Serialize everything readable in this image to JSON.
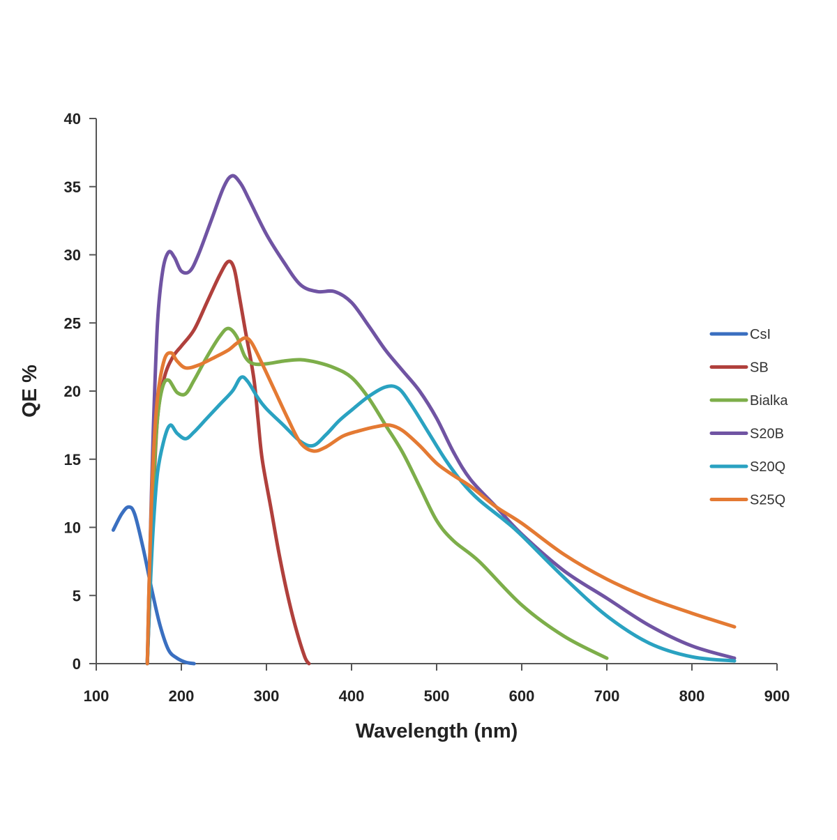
{
  "chart_data": {
    "type": "line",
    "xlabel": "Wavelength (nm)",
    "ylabel": "QE %",
    "xlim": [
      100,
      900
    ],
    "ylim": [
      0,
      40
    ],
    "x_ticks": [
      100,
      200,
      300,
      400,
      500,
      600,
      700,
      800,
      900
    ],
    "y_ticks": [
      0,
      5,
      10,
      15,
      20,
      25,
      30,
      35,
      40
    ],
    "grid": false,
    "legend_position": "right",
    "series": [
      {
        "name": "CsI",
        "color": "#3a6fc0",
        "points": [
          [
            120,
            9.8
          ],
          [
            130,
            11.0
          ],
          [
            138,
            11.5
          ],
          [
            145,
            11.0
          ],
          [
            155,
            8.5
          ],
          [
            165,
            5.5
          ],
          [
            175,
            2.8
          ],
          [
            185,
            1.0
          ],
          [
            195,
            0.4
          ],
          [
            205,
            0.1
          ],
          [
            215,
            0.0
          ]
        ]
      },
      {
        "name": "SB",
        "color": "#b0403c",
        "points": [
          [
            160,
            0.0
          ],
          [
            163,
            5.0
          ],
          [
            167,
            12.0
          ],
          [
            172,
            18.0
          ],
          [
            180,
            21.0
          ],
          [
            190,
            22.5
          ],
          [
            200,
            23.3
          ],
          [
            215,
            24.5
          ],
          [
            230,
            26.5
          ],
          [
            245,
            28.5
          ],
          [
            255,
            29.5
          ],
          [
            262,
            29.0
          ],
          [
            268,
            27.0
          ],
          [
            275,
            24.5
          ],
          [
            285,
            21.0
          ],
          [
            290,
            18.0
          ],
          [
            295,
            15.0
          ],
          [
            305,
            11.5
          ],
          [
            315,
            8.0
          ],
          [
            325,
            5.0
          ],
          [
            335,
            2.5
          ],
          [
            345,
            0.5
          ],
          [
            350,
            0.0
          ]
        ]
      },
      {
        "name": "Bialka",
        "color": "#7dae4a",
        "points": [
          [
            160,
            0.0
          ],
          [
            163,
            6.0
          ],
          [
            167,
            13.0
          ],
          [
            172,
            18.0
          ],
          [
            178,
            20.3
          ],
          [
            185,
            20.8
          ],
          [
            195,
            19.9
          ],
          [
            205,
            19.8
          ],
          [
            215,
            20.8
          ],
          [
            230,
            22.5
          ],
          [
            245,
            24.0
          ],
          [
            255,
            24.6
          ],
          [
            265,
            24.0
          ],
          [
            275,
            22.5
          ],
          [
            285,
            22.0
          ],
          [
            300,
            22.0
          ],
          [
            320,
            22.2
          ],
          [
            340,
            22.3
          ],
          [
            360,
            22.1
          ],
          [
            380,
            21.7
          ],
          [
            400,
            21.0
          ],
          [
            420,
            19.5
          ],
          [
            440,
            17.5
          ],
          [
            460,
            15.5
          ],
          [
            480,
            13.0
          ],
          [
            500,
            10.5
          ],
          [
            520,
            9.0
          ],
          [
            550,
            7.5
          ],
          [
            600,
            4.3
          ],
          [
            650,
            2.0
          ],
          [
            700,
            0.4
          ]
        ]
      },
      {
        "name": "S20B",
        "color": "#7054a3",
        "points": [
          [
            160,
            0.0
          ],
          [
            163,
            8.0
          ],
          [
            167,
            17.0
          ],
          [
            172,
            25.0
          ],
          [
            178,
            28.8
          ],
          [
            185,
            30.2
          ],
          [
            192,
            29.8
          ],
          [
            200,
            28.8
          ],
          [
            210,
            28.8
          ],
          [
            220,
            30.0
          ],
          [
            235,
            32.5
          ],
          [
            250,
            35.0
          ],
          [
            260,
            35.8
          ],
          [
            270,
            35.2
          ],
          [
            280,
            34.0
          ],
          [
            300,
            31.5
          ],
          [
            320,
            29.5
          ],
          [
            340,
            27.8
          ],
          [
            360,
            27.3
          ],
          [
            380,
            27.3
          ],
          [
            400,
            26.5
          ],
          [
            420,
            24.8
          ],
          [
            440,
            23.0
          ],
          [
            460,
            21.5
          ],
          [
            480,
            20.0
          ],
          [
            500,
            18.0
          ],
          [
            520,
            15.5
          ],
          [
            540,
            13.5
          ],
          [
            570,
            11.5
          ],
          [
            600,
            9.5
          ],
          [
            650,
            6.8
          ],
          [
            700,
            4.8
          ],
          [
            750,
            2.8
          ],
          [
            800,
            1.3
          ],
          [
            850,
            0.4
          ]
        ]
      },
      {
        "name": "S20Q",
        "color": "#2aa2c1",
        "points": [
          [
            160,
            0.0
          ],
          [
            163,
            5.0
          ],
          [
            167,
            10.0
          ],
          [
            172,
            14.0
          ],
          [
            180,
            16.5
          ],
          [
            187,
            17.5
          ],
          [
            195,
            16.9
          ],
          [
            205,
            16.5
          ],
          [
            215,
            17.0
          ],
          [
            230,
            18.0
          ],
          [
            245,
            19.0
          ],
          [
            260,
            20.0
          ],
          [
            270,
            21.0
          ],
          [
            278,
            20.7
          ],
          [
            290,
            19.5
          ],
          [
            300,
            18.7
          ],
          [
            320,
            17.5
          ],
          [
            340,
            16.3
          ],
          [
            355,
            16.0
          ],
          [
            370,
            16.8
          ],
          [
            385,
            17.8
          ],
          [
            400,
            18.6
          ],
          [
            420,
            19.6
          ],
          [
            440,
            20.3
          ],
          [
            455,
            20.2
          ],
          [
            470,
            19.0
          ],
          [
            490,
            17.0
          ],
          [
            510,
            15.0
          ],
          [
            530,
            13.3
          ],
          [
            550,
            12.0
          ],
          [
            580,
            10.5
          ],
          [
            600,
            9.4
          ],
          [
            650,
            6.3
          ],
          [
            700,
            3.5
          ],
          [
            750,
            1.5
          ],
          [
            800,
            0.5
          ],
          [
            850,
            0.2
          ]
        ]
      },
      {
        "name": "S25Q",
        "color": "#e47a33",
        "points": [
          [
            160,
            0.0
          ],
          [
            163,
            8.0
          ],
          [
            167,
            15.0
          ],
          [
            172,
            19.5
          ],
          [
            180,
            22.3
          ],
          [
            188,
            22.8
          ],
          [
            195,
            22.2
          ],
          [
            205,
            21.7
          ],
          [
            220,
            21.9
          ],
          [
            240,
            22.5
          ],
          [
            255,
            23.0
          ],
          [
            265,
            23.5
          ],
          [
            275,
            23.9
          ],
          [
            283,
            23.5
          ],
          [
            295,
            22.0
          ],
          [
            310,
            20.0
          ],
          [
            325,
            18.0
          ],
          [
            340,
            16.2
          ],
          [
            355,
            15.6
          ],
          [
            370,
            15.9
          ],
          [
            390,
            16.7
          ],
          [
            410,
            17.1
          ],
          [
            430,
            17.4
          ],
          [
            445,
            17.5
          ],
          [
            460,
            17.1
          ],
          [
            480,
            16.0
          ],
          [
            500,
            14.7
          ],
          [
            520,
            13.8
          ],
          [
            540,
            13.0
          ],
          [
            570,
            11.5
          ],
          [
            600,
            10.3
          ],
          [
            650,
            8.0
          ],
          [
            700,
            6.2
          ],
          [
            750,
            4.8
          ],
          [
            800,
            3.7
          ],
          [
            850,
            2.7
          ]
        ]
      }
    ]
  }
}
